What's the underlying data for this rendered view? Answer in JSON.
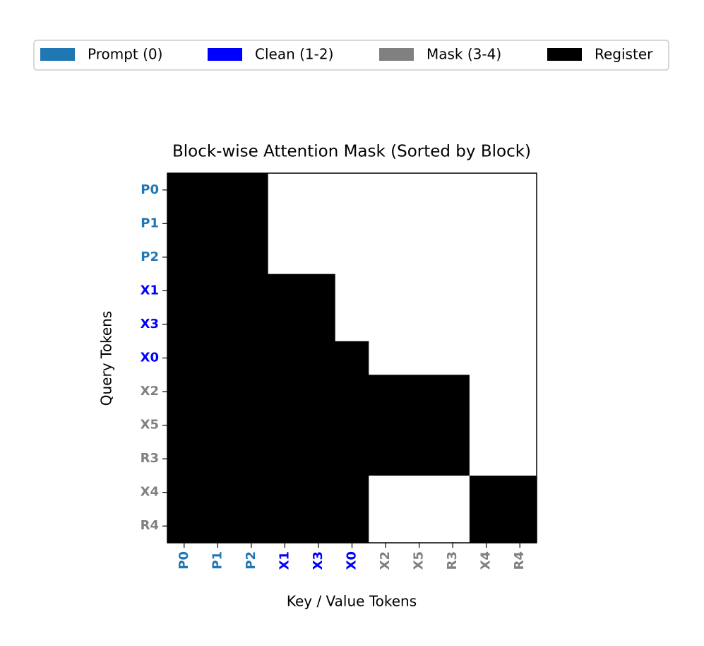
{
  "chart_data": {
    "type": "heatmap",
    "title": "Block-wise Attention Mask (Sorted by Block)",
    "x_label": "Key / Value Tokens",
    "y_label": "Query Tokens",
    "categories": [
      "P0",
      "P1",
      "P2",
      "X1",
      "X3",
      "X0",
      "X2",
      "X5",
      "R3",
      "X4",
      "R4"
    ],
    "label_colors": [
      "#1f77b4",
      "#1f77b4",
      "#1f77b4",
      "#0000ff",
      "#0000ff",
      "#0000ff",
      "#808080",
      "#808080",
      "#808080",
      "#808080",
      "#808080"
    ],
    "values": [
      [
        1,
        1,
        1,
        0,
        0,
        0,
        0,
        0,
        0,
        0,
        0
      ],
      [
        1,
        1,
        1,
        0,
        0,
        0,
        0,
        0,
        0,
        0,
        0
      ],
      [
        1,
        1,
        1,
        0,
        0,
        0,
        0,
        0,
        0,
        0,
        0
      ],
      [
        1,
        1,
        1,
        1,
        1,
        0,
        0,
        0,
        0,
        0,
        0
      ],
      [
        1,
        1,
        1,
        1,
        1,
        0,
        0,
        0,
        0,
        0,
        0
      ],
      [
        1,
        1,
        1,
        1,
        1,
        1,
        0,
        0,
        0,
        0,
        0
      ],
      [
        1,
        1,
        1,
        1,
        1,
        1,
        1,
        1,
        1,
        0,
        0
      ],
      [
        1,
        1,
        1,
        1,
        1,
        1,
        1,
        1,
        1,
        0,
        0
      ],
      [
        1,
        1,
        1,
        1,
        1,
        1,
        1,
        1,
        1,
        0,
        0
      ],
      [
        1,
        1,
        1,
        1,
        1,
        1,
        0,
        0,
        0,
        1,
        1
      ],
      [
        1,
        1,
        1,
        1,
        1,
        1,
        0,
        0,
        0,
        1,
        1
      ]
    ],
    "cmap": [
      "#ffffff",
      "#000000"
    ],
    "legend": [
      {
        "name": "Prompt (0)",
        "color": "#1f77b4"
      },
      {
        "name": "Clean (1-2)",
        "color": "#0000ff"
      },
      {
        "name": "Mask (3-4)",
        "color": "#808080"
      },
      {
        "name": "Register",
        "color": "#000000"
      }
    ]
  }
}
